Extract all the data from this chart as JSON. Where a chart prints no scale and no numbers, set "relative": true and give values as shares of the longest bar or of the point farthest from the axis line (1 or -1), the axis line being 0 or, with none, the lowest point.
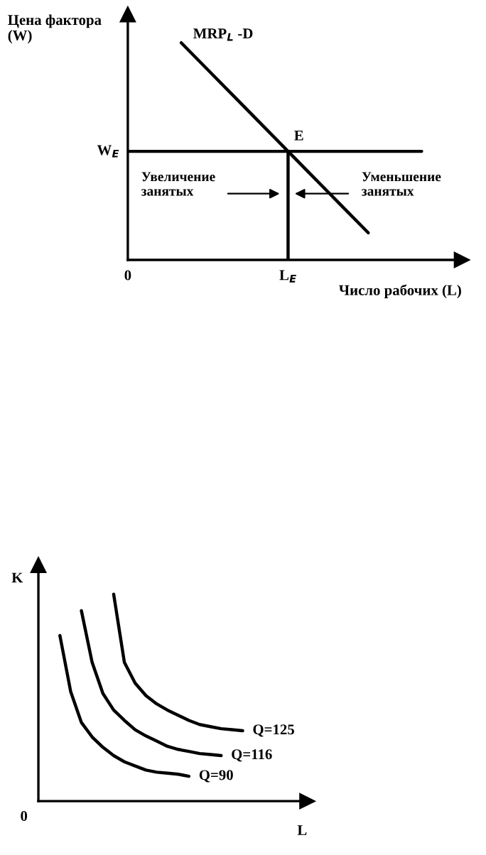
{
  "chart_data": [
    {
      "type": "line",
      "relative": true,
      "xlabel": "Число рабочих (L)",
      "ylabel": "Цена фактора\n(W)",
      "categories": [
        "0",
        null,
        null,
        null,
        null,
        null,
        "L$_{E}$",
        null,
        null,
        null,
        null,
        null
      ],
      "series": [
        {
          "name": "MRP$_{L}$ -D",
          "color": "#000000",
          "values": [
            null,
            null,
            1,
            0.875,
            0.75,
            0.625,
            0.5,
            0.375,
            0.25,
            0.125,
            null,
            null
          ]
        },
        {
          "color": "#000000",
          "values": [
            0.5,
            0.5,
            0.5,
            0.5,
            0.5,
            0.5,
            0.5,
            0.5,
            0.5,
            0.5,
            0.5,
            0.5
          ]
        }
      ],
      "ref_lines": [
        {
          "axis": "x",
          "value": "L$_{E}$",
          "color": "#000000"
        }
      ],
      "annotations": [
        {
          "text": "E",
          "x": "L$_{E}$",
          "y": 0.5
        },
        "W$_{E}$",
        "Увеличение\nзанятых",
        "Уменьшение\nзанятых"
      ],
      "line_style": "solid"
    },
    {
      "type": "line",
      "relative": true,
      "xlabel": "L",
      "ylabel": "K",
      "categories": [
        null,
        null,
        null,
        null,
        null,
        null,
        null,
        null,
        null,
        null,
        null,
        null,
        null,
        null,
        null,
        null,
        null,
        null,
        null,
        null,
        null
      ],
      "annotations": [
        "0"
      ],
      "series": [
        {
          "name": "Q=125",
          "color": "#000000",
          "values": [
            null,
            null,
            null,
            null,
            null,
            null,
            null,
            1,
            0.67,
            0.57,
            0.51,
            0.47,
            0.44,
            0.415,
            0.39,
            0.37,
            0.36,
            0.35,
            0.345,
            0.34,
            null
          ]
        },
        {
          "name": "Q=116",
          "color": "#000000",
          "values": [
            null,
            null,
            null,
            null,
            0.92,
            0.67,
            0.52,
            0.44,
            0.39,
            0.345,
            0.315,
            0.29,
            0.265,
            0.25,
            0.24,
            0.23,
            0.225,
            0.22,
            null,
            null,
            null
          ]
        },
        {
          "name": "Q=90",
          "color": "#000000",
          "values": [
            null,
            null,
            0.8,
            0.53,
            0.38,
            0.31,
            0.26,
            0.22,
            0.19,
            0.17,
            0.15,
            0.14,
            0.135,
            0.13,
            0.12,
            null,
            null,
            null,
            null,
            null,
            null
          ]
        }
      ],
      "line_style": "solid"
    }
  ]
}
